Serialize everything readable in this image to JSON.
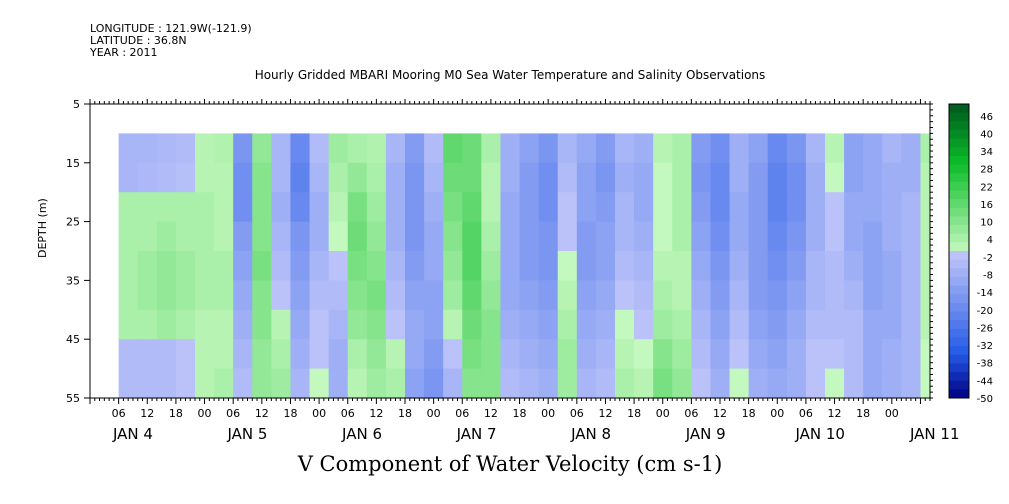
{
  "chart_data": {
    "type": "heatmap",
    "header_lines": [
      "LONGITUDE : 121.9W(-121.9)",
      "LATITUDE : 36.8N",
      "YEAR : 2011"
    ],
    "title": "Hourly Gridded MBARI Mooring M0 Sea Water Temperature and Salinity Observations",
    "xlabel": "V Component of Water Velocity (cm s-1)",
    "ylabel": "DEPTH (m)",
    "xlim_hours": [
      0,
      176
    ],
    "ylim": [
      5,
      55
    ],
    "y_ticks": [
      5,
      15,
      25,
      35,
      45,
      55
    ],
    "x_hour_ticks": [
      "06",
      "12",
      "18",
      "00",
      "06",
      "12",
      "18",
      "00",
      "06",
      "12",
      "18",
      "00",
      "06",
      "12",
      "18",
      "00",
      "06",
      "12",
      "18",
      "00",
      "06",
      "12",
      "18",
      "00",
      "06",
      "12",
      "18",
      "00"
    ],
    "x_day_labels": [
      "JAN 4",
      "JAN 5",
      "JAN 6",
      "JAN 7",
      "JAN 8",
      "JAN 9",
      "JAN 10",
      "JAN 11"
    ],
    "colorbar_labels": [
      46,
      40,
      34,
      28,
      22,
      16,
      10,
      4,
      -2,
      -8,
      -14,
      -20,
      -26,
      -32,
      -38,
      -44,
      -50
    ],
    "value_range": [
      -50,
      50
    ],
    "depth_levels": [
      10,
      15,
      20,
      25,
      30,
      35,
      40,
      45,
      50,
      55
    ],
    "time_hours": [
      8,
      12,
      16,
      20,
      24,
      28,
      32,
      36,
      40,
      44,
      48,
      52,
      56,
      60,
      64,
      68,
      72,
      76,
      80,
      84,
      88,
      92,
      96,
      100,
      104,
      108,
      112,
      116,
      120,
      124,
      128,
      132,
      136,
      140,
      144,
      148,
      152,
      156,
      160,
      164,
      168,
      172,
      176
    ],
    "values": [
      [
        -6,
        -6,
        -5,
        -4,
        2,
        3,
        -16,
        8,
        -6,
        -20,
        -4,
        6,
        4,
        3,
        -6,
        -14,
        -4,
        16,
        14,
        4,
        -8,
        -12,
        -16,
        -6,
        -10,
        -14,
        -6,
        -8,
        2,
        4,
        -14,
        -18,
        -8,
        -12,
        -20,
        -16,
        -6,
        2,
        -12,
        -10,
        -6,
        -8,
        4
      ],
      [
        -6,
        -5,
        -4,
        -3,
        2,
        2,
        -18,
        10,
        -6,
        -22,
        -6,
        4,
        8,
        4,
        -8,
        -16,
        -6,
        14,
        14,
        2,
        -8,
        -14,
        -18,
        -4,
        -12,
        -16,
        -8,
        -10,
        0,
        4,
        -16,
        -20,
        -8,
        -14,
        -22,
        -18,
        -8,
        0,
        -12,
        -10,
        -8,
        -8,
        2
      ],
      [
        4,
        4,
        4,
        4,
        4,
        2,
        -18,
        10,
        -8,
        -20,
        -8,
        2,
        12,
        6,
        -8,
        -16,
        -8,
        12,
        16,
        2,
        -10,
        -14,
        -18,
        -2,
        -12,
        -14,
        -6,
        -10,
        0,
        4,
        -14,
        -20,
        -10,
        -14,
        -22,
        -18,
        -8,
        -2,
        -10,
        -10,
        -8,
        -6,
        2
      ],
      [
        4,
        4,
        6,
        4,
        4,
        2,
        -14,
        10,
        -6,
        -16,
        -8,
        0,
        14,
        8,
        -8,
        -16,
        -10,
        10,
        18,
        4,
        -10,
        -14,
        -16,
        -2,
        -14,
        -12,
        -6,
        -8,
        0,
        4,
        -12,
        -18,
        -10,
        -14,
        -20,
        -16,
        -8,
        -2,
        -10,
        -12,
        -8,
        -6,
        2
      ],
      [
        4,
        6,
        8,
        6,
        4,
        4,
        -12,
        12,
        -4,
        -14,
        -6,
        -2,
        12,
        10,
        -6,
        -14,
        -10,
        8,
        18,
        6,
        -10,
        -14,
        -16,
        0,
        -14,
        -12,
        -4,
        -6,
        2,
        2,
        -10,
        -16,
        -8,
        -14,
        -18,
        -14,
        -6,
        -4,
        -8,
        -12,
        -10,
        -6,
        2
      ],
      [
        4,
        6,
        8,
        6,
        4,
        4,
        -10,
        10,
        -2,
        -12,
        -4,
        -4,
        10,
        12,
        -4,
        -12,
        -12,
        6,
        16,
        8,
        -10,
        -12,
        -14,
        2,
        -12,
        -10,
        -2,
        -4,
        4,
        2,
        -8,
        -14,
        -6,
        -14,
        -16,
        -12,
        -6,
        -4,
        -6,
        -12,
        -10,
        -6,
        2
      ],
      [
        4,
        4,
        6,
        4,
        2,
        2,
        -8,
        10,
        2,
        -10,
        -2,
        -6,
        8,
        10,
        -2,
        -10,
        -12,
        2,
        14,
        10,
        -8,
        -10,
        -12,
        4,
        -10,
        -8,
        0,
        -2,
        6,
        4,
        -6,
        -12,
        -4,
        -12,
        -14,
        -10,
        -4,
        -4,
        -4,
        -10,
        -10,
        -6,
        2
      ],
      [
        -4,
        -4,
        -4,
        -2,
        2,
        2,
        -6,
        8,
        4,
        -8,
        -2,
        -8,
        4,
        8,
        2,
        -10,
        -14,
        -2,
        12,
        10,
        -6,
        -8,
        -10,
        6,
        -8,
        -6,
        2,
        0,
        10,
        6,
        -4,
        -10,
        -2,
        -10,
        -12,
        -8,
        -2,
        -2,
        -4,
        -10,
        -8,
        -6,
        0
      ],
      [
        -4,
        -4,
        -4,
        -2,
        2,
        4,
        -4,
        8,
        6,
        -6,
        0,
        -8,
        2,
        6,
        4,
        -12,
        -16,
        -6,
        10,
        10,
        -4,
        -6,
        -8,
        6,
        -6,
        -4,
        4,
        2,
        12,
        8,
        -2,
        -8,
        0,
        -8,
        -10,
        -8,
        -2,
        0,
        -4,
        -10,
        -8,
        -6,
        0
      ],
      [
        -4,
        -4,
        -4,
        -2,
        2,
        4,
        -4,
        6,
        6,
        -6,
        2,
        -8,
        0,
        4,
        6,
        -14,
        -18,
        -8,
        8,
        8,
        -4,
        -6,
        -6,
        8,
        -4,
        -2,
        4,
        2,
        12,
        10,
        0,
        -6,
        2,
        -8,
        -10,
        -8,
        -2,
        0,
        -4,
        -10,
        -8,
        -6,
        0
      ]
    ]
  }
}
